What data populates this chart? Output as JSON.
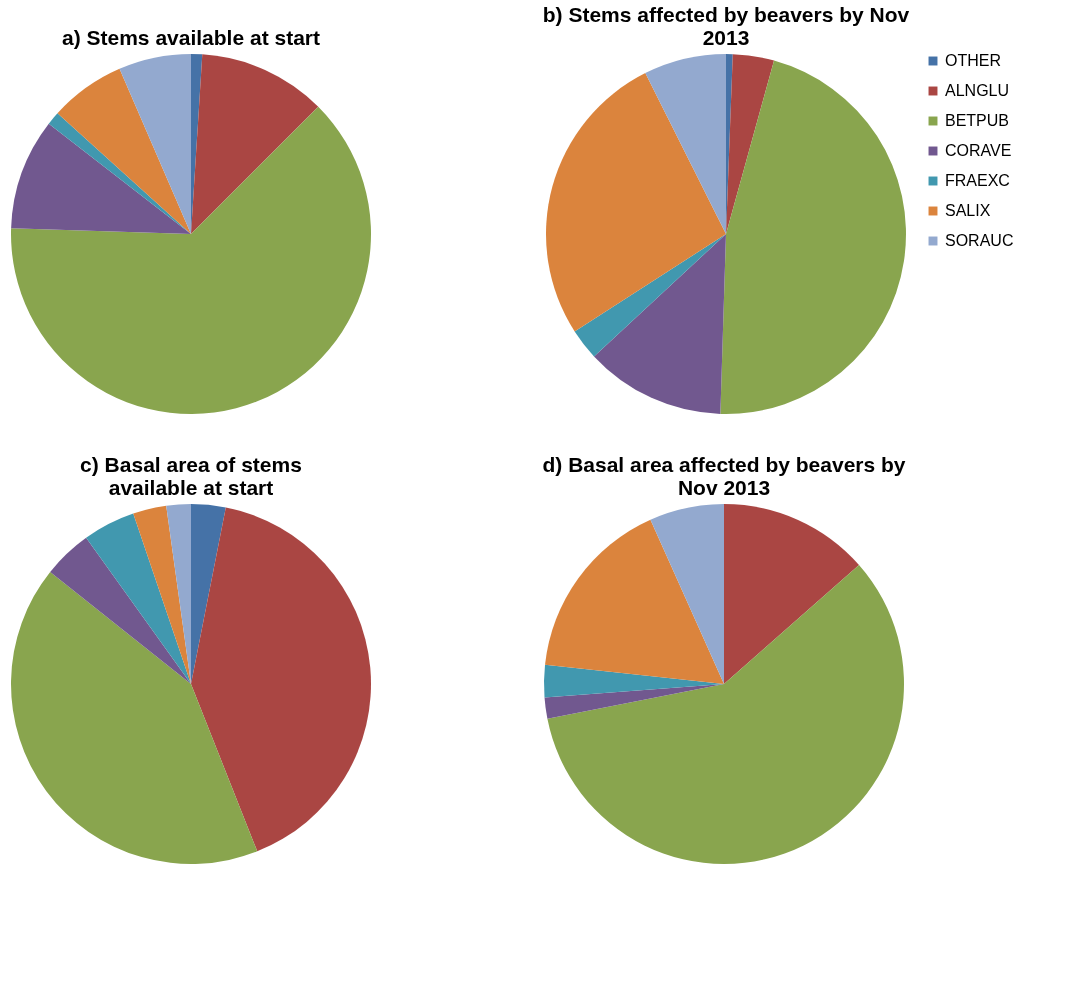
{
  "chart_data": [
    {
      "type": "pie",
      "title": "a) Stems available at start",
      "categories": [
        null,
        null,
        null,
        null,
        null,
        null,
        null
      ],
      "values": [
        1,
        11.5,
        63,
        10,
        1.2,
        6.8,
        6.5
      ],
      "colors": [
        "#4572a7",
        "#aa4643",
        "#89a54e",
        "#71588f",
        "#4198af",
        "#db843d",
        "#93a9cf"
      ],
      "legend": false
    },
    {
      "type": "pie",
      "title": "b) Stems affected by beavers by Nov\n2013",
      "categories": [
        "OTHER",
        "ALNGLU",
        "BETPUB",
        "CORAVE",
        "FRAEXC",
        "SALIX",
        "SORAUC"
      ],
      "values": [
        0.6,
        3.7,
        46.2,
        12.6,
        2.8,
        26.7,
        7.4
      ],
      "colors": [
        "#4572a7",
        "#aa4643",
        "#89a54e",
        "#71588f",
        "#4198af",
        "#db843d",
        "#93a9cf"
      ],
      "legend": "right"
    },
    {
      "type": "pie",
      "title": "c) Basal area of stems\navailable at start",
      "categories": [
        null,
        null,
        null,
        null,
        null,
        null,
        null
      ],
      "values": [
        3.1,
        40.9,
        41.7,
        4.4,
        4.7,
        3,
        2.2
      ],
      "colors": [
        "#4572a7",
        "#aa4643",
        "#89a54e",
        "#71588f",
        "#4198af",
        "#db843d",
        "#93a9cf"
      ],
      "legend": false
    },
    {
      "type": "pie",
      "title": "d) Basal area affected by beavers by\nNov 2013",
      "categories": [
        null,
        null,
        null,
        null,
        null,
        null,
        null
      ],
      "values": [
        0,
        13.5,
        58.4,
        1.9,
        2.9,
        16.6,
        6.7
      ],
      "colors": [
        "#4572a7",
        "#aa4643",
        "#89a54e",
        "#71588f",
        "#4198af",
        "#db843d",
        "#93a9cf"
      ],
      "legend": false
    }
  ]
}
